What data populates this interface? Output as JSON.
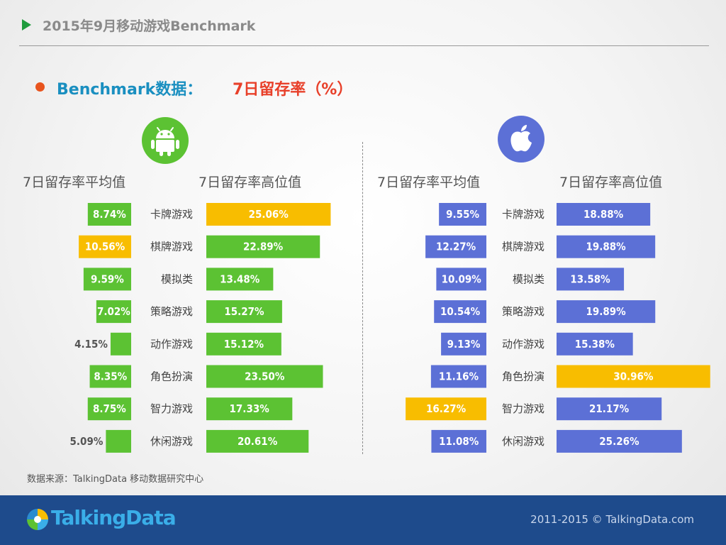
{
  "header": {
    "title": "2015年9月移动游戏Benchmark"
  },
  "subtitle": {
    "part1": "Benchmark数据：",
    "part2": "7日留存率（%）"
  },
  "footer": {
    "source": "数据来源：TalkingData 移动数据研究中心",
    "logo": "TalkingData",
    "copyright": "2011-2015 © TalkingData.com"
  },
  "colors": {
    "android": "#5cc233",
    "ios": "#5c70d6",
    "highlight": "#f8bd00",
    "text_outside": "#555555"
  },
  "chart_data": [
    {
      "type": "bar",
      "platform": "Android",
      "icon": "android-icon",
      "categories": [
        "卡牌游戏",
        "棋牌游戏",
        "模拟类",
        "策略游戏",
        "动作游戏",
        "角色扮演",
        "智力游戏",
        "休闲游戏"
      ],
      "series": [
        {
          "name": "7日留存率平均值",
          "values": [
            8.74,
            10.56,
            9.59,
            7.02,
            4.15,
            8.35,
            8.75,
            5.09
          ],
          "labels": [
            "8.74%",
            "10.56%",
            "9.59%",
            "7.02%",
            "4.15%",
            "8.35%",
            "8.75%",
            "5.09%"
          ],
          "highlight_index": 1
        },
        {
          "name": "7日留存率高位值",
          "values": [
            25.06,
            22.89,
            13.48,
            15.27,
            15.12,
            23.5,
            17.33,
            20.61
          ],
          "labels": [
            "25.06%",
            "22.89%",
            "13.48%",
            "15.27%",
            "15.12%",
            "23.50%",
            "17.33%",
            "20.61%"
          ],
          "highlight_index": 0
        }
      ]
    },
    {
      "type": "bar",
      "platform": "iOS",
      "icon": "apple-icon",
      "categories": [
        "卡牌游戏",
        "棋牌游戏",
        "模拟类",
        "策略游戏",
        "动作游戏",
        "角色扮演",
        "智力游戏",
        "休闲游戏"
      ],
      "series": [
        {
          "name": "7日留存率平均值",
          "values": [
            9.55,
            12.27,
            10.09,
            10.54,
            9.13,
            11.16,
            16.27,
            11.08
          ],
          "labels": [
            "9.55%",
            "12.27%",
            "10.09%",
            "10.54%",
            "9.13%",
            "11.16%",
            "16.27%",
            "11.08%"
          ],
          "highlight_index": 6
        },
        {
          "name": "7日留存率高位值",
          "values": [
            18.88,
            19.88,
            13.58,
            19.89,
            15.38,
            30.96,
            21.17,
            25.26
          ],
          "labels": [
            "18.88%",
            "19.88%",
            "13.58%",
            "19.89%",
            "15.38%",
            "30.96%",
            "21.17%",
            "25.26%"
          ],
          "highlight_index": 5
        }
      ]
    }
  ]
}
